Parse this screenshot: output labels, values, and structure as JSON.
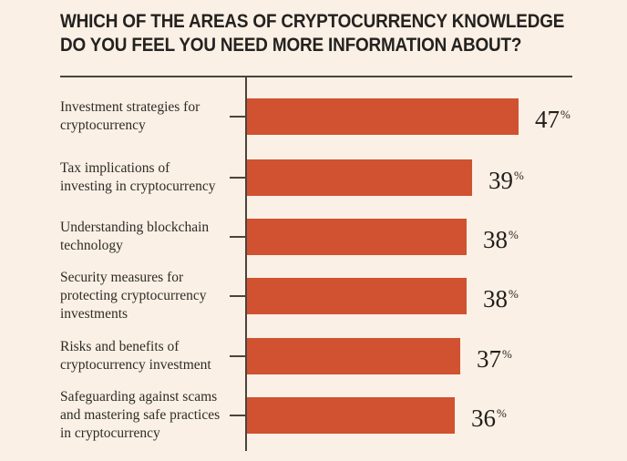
{
  "page": {
    "background_color": "#FBF0E5"
  },
  "header": {
    "title_lines": [
      "WHICH OF THE AREAS OF CRYPTOCURRENCY KNOWLEDGE",
      "DO YOU FEEL YOU NEED MORE INFORMATION ABOUT?"
    ],
    "title_color": "#242220"
  },
  "chart_data": {
    "type": "bar",
    "orientation": "horizontal",
    "title": "Which of the areas of cryptocurrency knowledge do you feel you need more information about?",
    "categories": [
      "Investment strategies for cryptocurrency",
      "Tax implications of investing in cryptocurrency",
      "Understanding blockchain technology",
      "Security measures for protecting cryptocurrency investments",
      "Risks and benefits of cryptocurrency investment",
      "Safeguarding against scams and mastering safe practices in cryptocurrency"
    ],
    "categories_display": [
      "Investment strategies for\ncryptocurrency",
      "Tax implications of\ninvesting in cryptocurrency",
      "Understanding blockchain\ntechnology",
      "Security measures for\nprotecting cryptocurrency\ninvestments",
      "Risks and benefits of\ncryptocurrency investment",
      "Safeguarding against scams\nand mastering safe practices\nin cryptocurrency"
    ],
    "values": [
      47,
      39,
      38,
      38,
      37,
      36
    ],
    "value_suffix": "%",
    "xlim": [
      0,
      50
    ],
    "grid": false,
    "legend": false,
    "bar_color": "#D05231",
    "axis_color": "#4A443D"
  }
}
